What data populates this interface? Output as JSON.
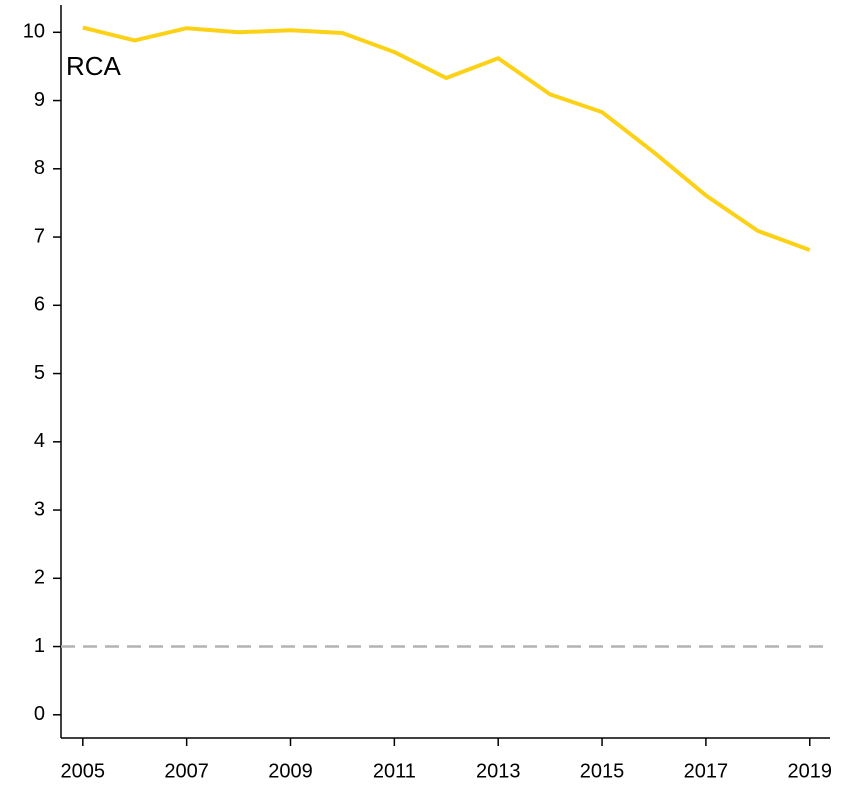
{
  "chart_data": {
    "type": "line",
    "annotation": "RCA",
    "x": [
      2005,
      2006,
      2007,
      2008,
      2009,
      2010,
      2011,
      2012,
      2013,
      2014,
      2015,
      2016,
      2017,
      2018,
      2019
    ],
    "series": [
      {
        "name": "RCA",
        "color": "#fcd116",
        "values": [
          10.07,
          9.88,
          10.06,
          10.0,
          10.03,
          9.99,
          9.71,
          9.33,
          9.62,
          9.09,
          8.83,
          8.24,
          7.61,
          7.09,
          6.81
        ]
      }
    ],
    "xlim": [
      2004.58,
      2019.39
    ],
    "xticks": [
      2005,
      2007,
      2009,
      2011,
      2013,
      2015,
      2017,
      2019
    ],
    "ylim": [
      -0.34,
      10.4
    ],
    "yticks": [
      0,
      1,
      2,
      3,
      4,
      5,
      6,
      7,
      8,
      9,
      10
    ],
    "reference_line": {
      "value": 1,
      "color": "#b3b3b3",
      "style": "dashed"
    },
    "grid": false,
    "legend": false
  }
}
